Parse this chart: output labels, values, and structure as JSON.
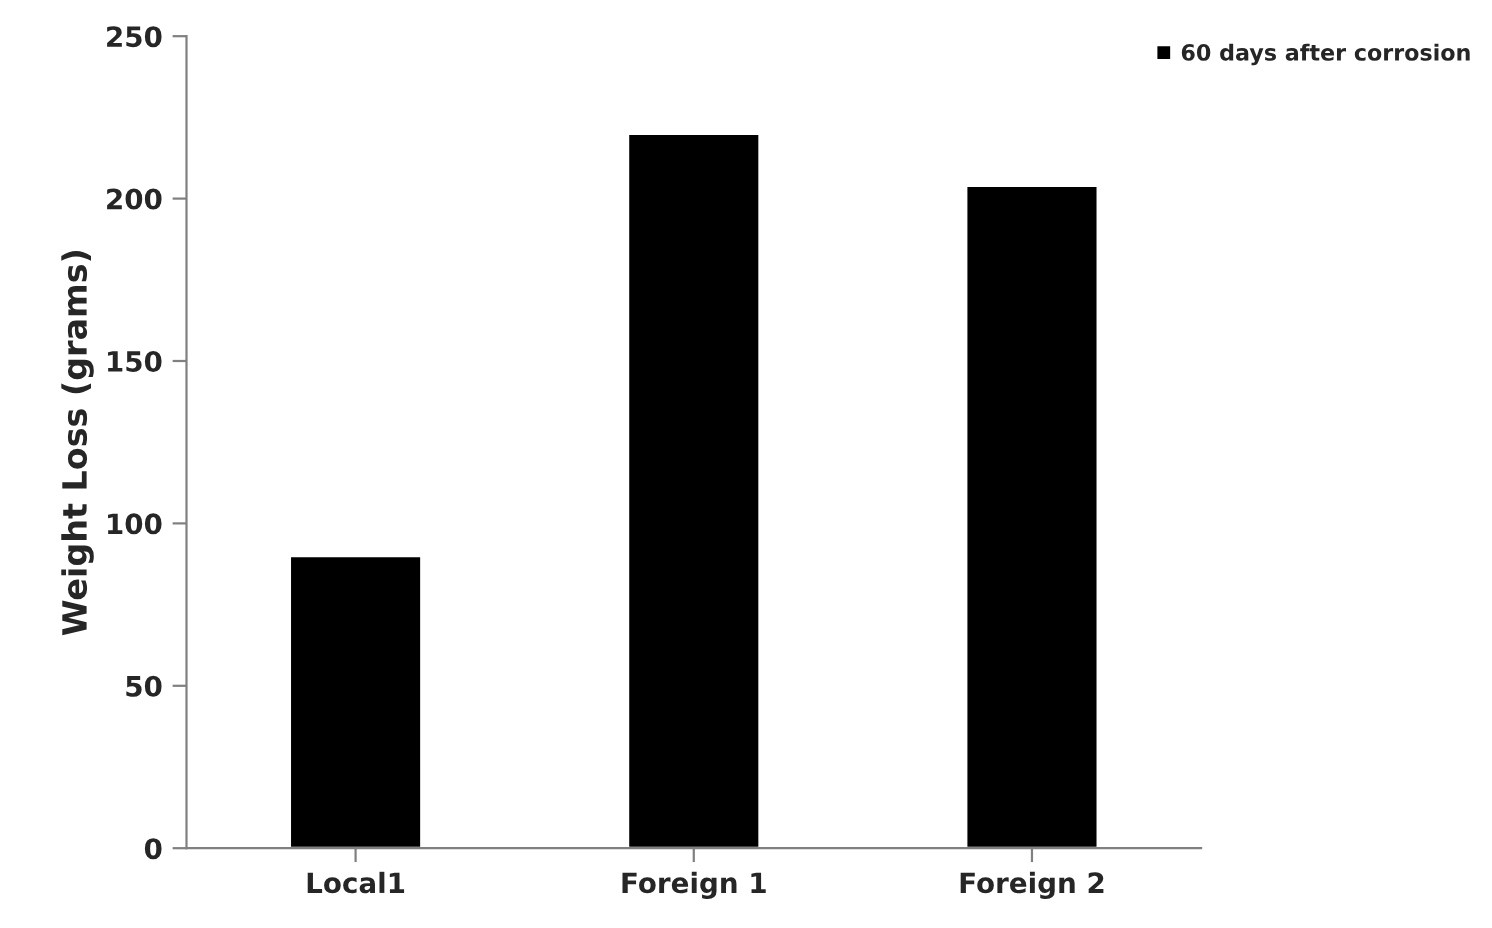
{
  "chart_data": {
    "type": "bar",
    "ylabel": "Weight Loss (grams)",
    "categories": [
      "Local1",
      "Foreign 1",
      "Foreign 2"
    ],
    "series": [
      {
        "name": "60 days after corrosion",
        "color": "#000000",
        "values": [
          90,
          220,
          204
        ]
      }
    ],
    "ylim": [
      0,
      250
    ],
    "yticks": [
      0,
      50,
      100,
      150,
      200,
      250
    ],
    "grid": false,
    "legend": "top right"
  }
}
